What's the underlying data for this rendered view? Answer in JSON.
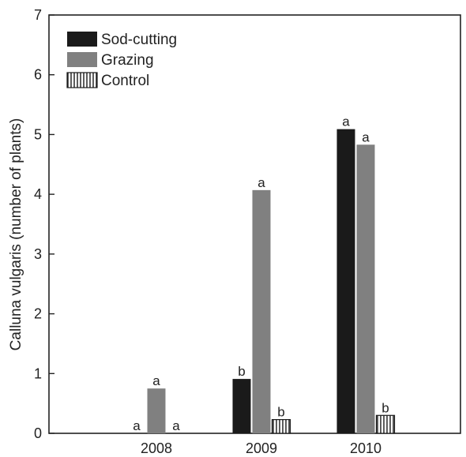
{
  "chart_data": {
    "type": "bar",
    "title": "",
    "xlabel": "",
    "ylabel": "Calluna vulgaris (number of plants)",
    "ylim": [
      0,
      7
    ],
    "yticks": [
      0,
      1,
      2,
      3,
      4,
      5,
      6,
      7
    ],
    "categories": [
      "2008",
      "2009",
      "2010"
    ],
    "series": [
      {
        "name": "Sod-cutting",
        "color": "#1a1a1a",
        "pattern": "solid",
        "values": [
          0,
          0.91,
          5.09
        ],
        "labels": [
          "a",
          "b",
          "a"
        ]
      },
      {
        "name": "Grazing",
        "color": "#808080",
        "pattern": "solid",
        "values": [
          0.75,
          4.07,
          4.83
        ],
        "labels": [
          "a",
          "a",
          "a"
        ]
      },
      {
        "name": "Control",
        "color": "#ffffff",
        "pattern": "vertical-stripes",
        "values": [
          0,
          0.23,
          0.3
        ],
        "labels": [
          "a",
          "b",
          "b"
        ]
      }
    ],
    "legend_position": "top-left",
    "grid": false
  }
}
